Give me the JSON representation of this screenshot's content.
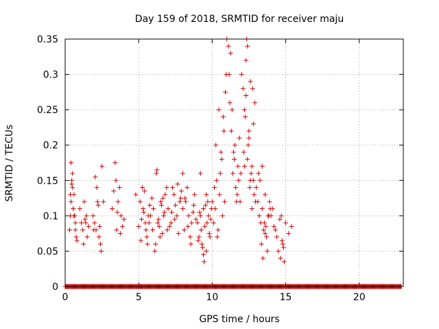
{
  "chart_data": {
    "type": "scatter",
    "title": "Day 159 of 2018, SRMTID for receiver maju",
    "xlabel": "GPS time / hours",
    "ylabel": "SRMTID / TECUs",
    "xlim": [
      0,
      23
    ],
    "ylim": [
      0,
      0.35
    ],
    "xticks": [
      0,
      5,
      10,
      15,
      20
    ],
    "yticks": [
      0,
      0.05,
      0.1,
      0.15,
      0.2,
      0.25,
      0.3,
      0.35
    ],
    "xtick_labels": [
      "0",
      "5",
      "10",
      "15",
      "20"
    ],
    "ytick_labels": [
      "0",
      "0.05",
      "0.1",
      "0.15",
      "0.2",
      "0.25",
      "0.3",
      "0.35"
    ],
    "grid": true,
    "marker": "+",
    "marker_color": "#cc0000",
    "series": [
      {
        "name": "SRMTID",
        "x": [
          0.3,
          0.35,
          0.4,
          0.45,
          0.5,
          0.55,
          0.6,
          0.65,
          0.7,
          0.75,
          0.4,
          0.5,
          0.6,
          0.45,
          0.35,
          0.55,
          0.8,
          0.7,
          1.0,
          1.2,
          1.3,
          1.4,
          1.5,
          1.35,
          1.25,
          1.45,
          1.6,
          1.1,
          1.9,
          2.0,
          2.1,
          2.2,
          2.3,
          2.4,
          2.05,
          2.15,
          2.25,
          2.35,
          2.5,
          2.6,
          1.95,
          2.45,
          3.2,
          3.4,
          3.5,
          3.6,
          3.8,
          3.9,
          4.0,
          3.3,
          3.7,
          3.75,
          3.45,
          3.55,
          4.8,
          5.0,
          5.1,
          5.2,
          5.3,
          5.4,
          5.5,
          5.6,
          5.7,
          5.8,
          5.9,
          5.15,
          5.35,
          5.55,
          5.75,
          5.95,
          5.25,
          5.45,
          5.65,
          6.0,
          6.1,
          6.2,
          6.3,
          6.4,
          6.5,
          6.6,
          6.7,
          6.8,
          6.9,
          6.15,
          6.35,
          6.55,
          6.75,
          6.95,
          6.25,
          6.45,
          6.65,
          7.0,
          7.2,
          7.4,
          7.6,
          7.8,
          8.0,
          7.1,
          7.3,
          7.5,
          7.7,
          7.9,
          7.25,
          7.45,
          7.65,
          7.85,
          8.0,
          8.2,
          8.4,
          8.6,
          8.8,
          8.1,
          8.3,
          8.5,
          8.7,
          8.9,
          8.15,
          8.35,
          8.55,
          8.75,
          9.0,
          9.1,
          9.2,
          9.3,
          9.4,
          9.5,
          9.6,
          9.7,
          9.8,
          9.9,
          9.05,
          9.15,
          9.25,
          9.35,
          9.45,
          9.55,
          9.65,
          9.75,
          9.85,
          9.95,
          9.2,
          9.4,
          9.6,
          10.0,
          10.1,
          10.2,
          10.3,
          10.4,
          10.5,
          10.6,
          10.7,
          10.8,
          10.9,
          10.15,
          10.35,
          10.55,
          10.75,
          10.95,
          10.25,
          10.45,
          10.65,
          10.85,
          11.0,
          11.1,
          11.2,
          11.3,
          11.4,
          11.5,
          11.6,
          11.7,
          11.8,
          11.9,
          11.15,
          11.35,
          11.55,
          11.75,
          11.95,
          11.25,
          11.45,
          11.65,
          11.85,
          12.0,
          12.1,
          12.2,
          12.3,
          12.4,
          12.5,
          12.6,
          12.7,
          12.8,
          12.9,
          12.15,
          12.35,
          12.55,
          12.75,
          12.95,
          12.25,
          12.45,
          12.65,
          12.85,
          12.3,
          12.5,
          12.7,
          12.2,
          12.4,
          12.6,
          12.8,
          13.0,
          13.1,
          13.2,
          13.3,
          13.4,
          13.5,
          13.6,
          13.7,
          13.8,
          13.9,
          13.15,
          13.35,
          13.55,
          13.75,
          13.95,
          13.25,
          13.45,
          13.65,
          13.85,
          13.4,
          13.6,
          14.0,
          14.2,
          14.4,
          14.6,
          14.8,
          15.0,
          14.1,
          14.3,
          14.5,
          14.7,
          14.9,
          15.2,
          15.4,
          14.65,
          14.75,
          14.85
        ],
        "y": [
          0.08,
          0.13,
          0.12,
          0.145,
          0.14,
          0.11,
          0.1,
          0.1,
          0.09,
          0.07,
          0.175,
          0.16,
          0.13,
          0.15,
          0.1,
          0.11,
          0.065,
          0.08,
          0.11,
          0.08,
          0.12,
          0.09,
          0.07,
          0.095,
          0.06,
          0.1,
          0.085,
          0.09,
          0.1,
          0.09,
          0.08,
          0.12,
          0.07,
          0.06,
          0.155,
          0.14,
          0.115,
          0.085,
          0.17,
          0.12,
          0.08,
          0.05,
          0.11,
          0.175,
          0.08,
          0.12,
          0.1,
          0.085,
          0.095,
          0.135,
          0.14,
          0.075,
          0.15,
          0.105,
          0.13,
          0.085,
          0.12,
          0.095,
          0.11,
          0.135,
          0.08,
          0.06,
          0.09,
          0.1,
          0.125,
          0.065,
          0.105,
          0.07,
          0.115,
          0.08,
          0.14,
          0.09,
          0.1,
          0.11,
          0.05,
          0.16,
          0.09,
          0.085,
          0.12,
          0.075,
          0.1,
          0.13,
          0.14,
          0.06,
          0.095,
          0.115,
          0.105,
          0.08,
          0.165,
          0.07,
          0.125,
          0.11,
          0.09,
          0.13,
          0.1,
          0.12,
          0.16,
          0.085,
          0.14,
          0.115,
          0.075,
          0.135,
          0.105,
          0.095,
          0.145,
          0.125,
          0.11,
          0.12,
          0.1,
          0.09,
          0.13,
          0.08,
          0.14,
          0.07,
          0.105,
          0.095,
          0.125,
          0.085,
          0.06,
          0.115,
          0.09,
          0.07,
          0.1,
          0.06,
          0.11,
          0.085,
          0.05,
          0.12,
          0.075,
          0.095,
          0.065,
          0.105,
          0.08,
          0.055,
          0.035,
          0.115,
          0.09,
          0.1,
          0.07,
          0.11,
          0.16,
          0.045,
          0.13,
          0.12,
          0.09,
          0.11,
          0.15,
          0.08,
          0.13,
          0.19,
          0.1,
          0.22,
          0.275,
          0.14,
          0.07,
          0.16,
          0.24,
          0.3,
          0.2,
          0.25,
          0.18,
          0.12,
          0.35,
          0.34,
          0.26,
          0.22,
          0.16,
          0.18,
          0.14,
          0.13,
          0.15,
          0.12,
          0.3,
          0.25,
          0.2,
          0.17,
          0.16,
          0.33,
          0.19,
          0.12,
          0.21,
          0.3,
          0.28,
          0.25,
          0.32,
          0.18,
          0.22,
          0.15,
          0.17,
          0.23,
          0.26,
          0.19,
          0.35,
          0.14,
          0.28,
          0.12,
          0.24,
          0.2,
          0.16,
          0.13,
          0.27,
          0.21,
          0.11,
          0.17,
          0.34,
          0.29,
          0.15,
          0.14,
          0.12,
          0.1,
          0.09,
          0.11,
          0.08,
          0.13,
          0.07,
          0.1,
          0.12,
          0.16,
          0.06,
          0.09,
          0.05,
          0.11,
          0.15,
          0.04,
          0.085,
          0.1,
          0.17,
          0.075,
          0.1,
          0.085,
          0.07,
          0.095,
          0.06,
          0.09,
          0.11,
          0.08,
          0.05,
          0.1,
          0.035,
          0.075,
          0.085,
          0.04,
          0.065,
          0.055
        ]
      },
      {
        "name": "SRMTID zero baseline",
        "x_range": [
          0,
          22.9
        ],
        "y": 0
      }
    ]
  }
}
